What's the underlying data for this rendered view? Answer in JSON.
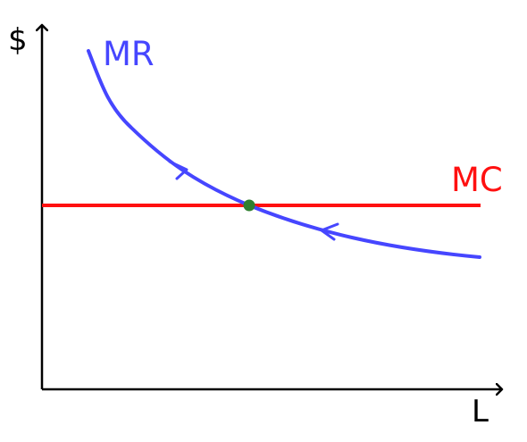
{
  "labels": {
    "y_axis": "$",
    "x_axis": "L",
    "mr_curve": "MR",
    "mc_line": "MC"
  },
  "colors": {
    "axes": "#000000",
    "mr": "#4646ff",
    "mc": "#ff1010",
    "intersection": "#2f7f2f"
  },
  "icons": {
    "mr_arrow_upper": "arrowhead-down-right-icon",
    "mr_arrow_lower": "arrowhead-up-left-icon",
    "intersection": "equilibrium-dot-icon"
  }
}
